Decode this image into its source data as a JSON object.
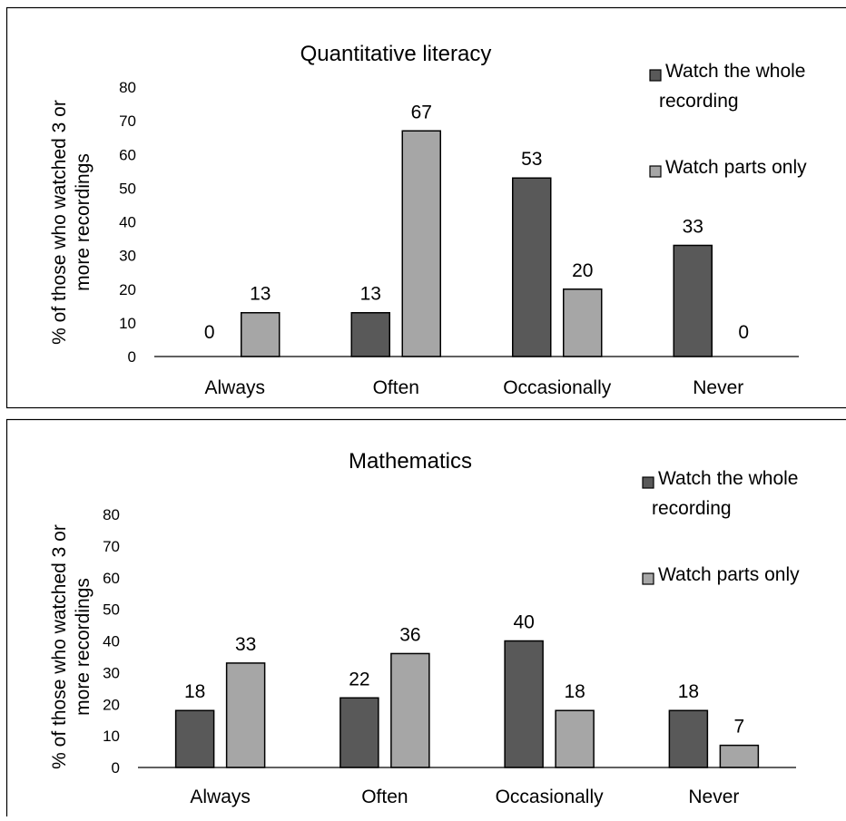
{
  "colors": {
    "series_whole": "#595959",
    "series_parts": "#a6a6a6",
    "bar_stroke": "#000000",
    "axis": "#000000",
    "border": "#000000"
  },
  "chart_data": [
    {
      "type": "bar",
      "title": "Quantitative literacy",
      "ylabel": "% of those who watched 3 or more recordings",
      "ylabel_lines": [
        "% of those who watched 3 or",
        "more recordings"
      ],
      "xlabel": "",
      "ylim": [
        0,
        80
      ],
      "yticks": [
        0,
        10,
        20,
        30,
        40,
        50,
        60,
        70,
        80
      ],
      "grid": false,
      "legend_position": "right",
      "categories": [
        "Always",
        "Often",
        "Occasionally",
        "Never"
      ],
      "series": [
        {
          "name": "Watch the whole recording",
          "name_lines": [
            "Watch the whole",
            "recording"
          ],
          "values": [
            0,
            13,
            53,
            33
          ]
        },
        {
          "name": "Watch parts only",
          "name_lines": [
            "Watch parts only"
          ],
          "values": [
            13,
            67,
            20,
            0
          ]
        }
      ]
    },
    {
      "type": "bar",
      "title": "Mathematics",
      "ylabel": "% of those who watched 3 or more recordings",
      "ylabel_lines": [
        "% of those who watched 3 or",
        "more recordings"
      ],
      "xlabel": "",
      "ylim": [
        0,
        80
      ],
      "yticks": [
        0,
        10,
        20,
        30,
        40,
        50,
        60,
        70,
        80
      ],
      "grid": false,
      "legend_position": "right",
      "categories": [
        "Always",
        "Often",
        "Occasionally",
        "Never"
      ],
      "series": [
        {
          "name": "Watch the whole recording",
          "name_lines": [
            "Watch the whole",
            "recording"
          ],
          "values": [
            18,
            22,
            40,
            18
          ]
        },
        {
          "name": "Watch parts only",
          "name_lines": [
            "Watch parts only"
          ],
          "values": [
            33,
            36,
            18,
            7
          ]
        }
      ]
    }
  ]
}
